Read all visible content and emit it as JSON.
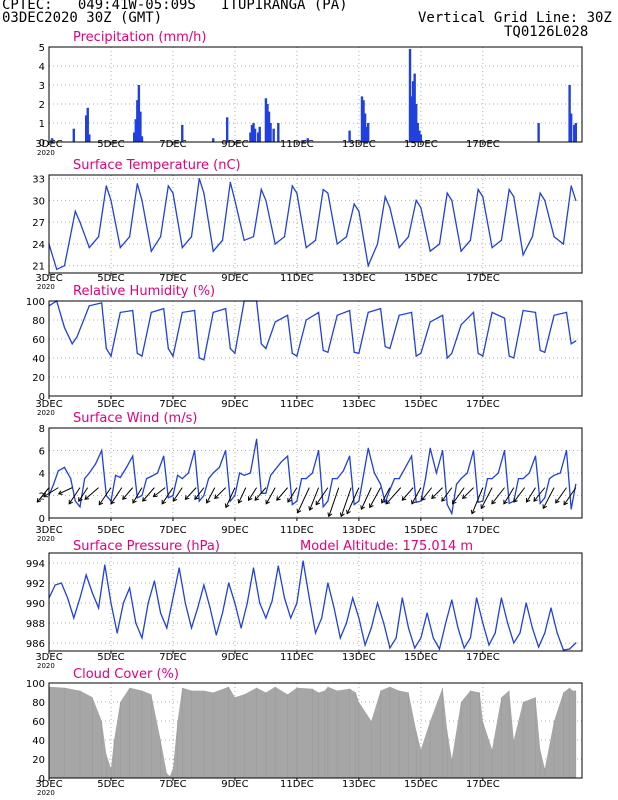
{
  "header": {
    "line1": "CPTEC:   049:41W-05:09S   ITUPIRANGA (PA)",
    "line2": "03DEC2020 30Z (GMT)",
    "vertical_grid": "Vertical Grid Line: 30Z",
    "code": "TQ0126L028",
    "model_altitude": "Model Altitude: 175.014 m"
  },
  "colors": {
    "header": "#e8801a",
    "title": "#e0007c",
    "series": "#2040e0",
    "cloud": "#a6a6a6",
    "axis": "#000000",
    "grid": "#b0b0b0"
  },
  "x_axis": {
    "tick_labels": [
      "3DEC",
      "5DEC",
      "7DEC",
      "9DEC",
      "11DEC",
      "13DEC",
      "15DEC",
      "17DEC"
    ],
    "year_label": "2020"
  },
  "chart_data": [
    {
      "type": "bar",
      "key": "precip",
      "title": "Precipitation (mm/h)",
      "ylim": [
        0,
        5
      ],
      "yticks": [
        0,
        1,
        2,
        3,
        4,
        5
      ],
      "points": [
        [
          0.1,
          0.2
        ],
        [
          0.8,
          0.7
        ],
        [
          1.2,
          1.4
        ],
        [
          1.25,
          1.8
        ],
        [
          1.3,
          0.4
        ],
        [
          2.75,
          0.5
        ],
        [
          2.8,
          1.2
        ],
        [
          2.85,
          2.2
        ],
        [
          2.9,
          3.0
        ],
        [
          2.95,
          1.6
        ],
        [
          3.0,
          0.3
        ],
        [
          4.3,
          0.9
        ],
        [
          5.3,
          0.2
        ],
        [
          5.75,
          1.3
        ],
        [
          6.5,
          0.5
        ],
        [
          6.55,
          0.9
        ],
        [
          6.6,
          1.0
        ],
        [
          6.65,
          0.7
        ],
        [
          6.75,
          0.5
        ],
        [
          6.8,
          0.8
        ],
        [
          7.0,
          2.3
        ],
        [
          7.05,
          2.0
        ],
        [
          7.1,
          1.6
        ],
        [
          7.15,
          1.0
        ],
        [
          7.25,
          0.7
        ],
        [
          7.4,
          1.0
        ],
        [
          8.2,
          0.1
        ],
        [
          8.35,
          0.2
        ],
        [
          9.7,
          0.6
        ],
        [
          10.1,
          2.4
        ],
        [
          10.15,
          2.2
        ],
        [
          10.2,
          1.5
        ],
        [
          10.25,
          0.8
        ],
        [
          10.3,
          1.0
        ],
        [
          11.65,
          4.9
        ],
        [
          11.7,
          2.4
        ],
        [
          11.75,
          3.2
        ],
        [
          11.8,
          3.6
        ],
        [
          11.85,
          2.0
        ],
        [
          11.9,
          1.0
        ],
        [
          11.95,
          0.6
        ],
        [
          12.0,
          0.4
        ],
        [
          15.8,
          1.0
        ],
        [
          16.8,
          3.0
        ],
        [
          16.85,
          1.5
        ],
        [
          16.95,
          0.9
        ],
        [
          17.0,
          1.0
        ]
      ]
    },
    {
      "type": "line",
      "key": "temp",
      "title": "Surface Temperature (nC)",
      "ylim": [
        20,
        33.5
      ],
      "yticks": [
        21,
        24,
        27,
        30,
        33
      ],
      "x": [
        0,
        0.25,
        0.5,
        0.85,
        1.0,
        1.3,
        1.6,
        1.85,
        2.0,
        2.3,
        2.6,
        2.85,
        3.0,
        3.3,
        3.6,
        3.85,
        4.0,
        4.3,
        4.6,
        4.85,
        5.0,
        5.3,
        5.6,
        5.85,
        6.0,
        6.3,
        6.6,
        6.85,
        7.0,
        7.3,
        7.6,
        7.85,
        8.0,
        8.3,
        8.6,
        8.85,
        9.0,
        9.3,
        9.6,
        9.85,
        10.0,
        10.3,
        10.6,
        10.85,
        11.0,
        11.3,
        11.6,
        11.85,
        12.0,
        12.3,
        12.6,
        12.85,
        13.0,
        13.3,
        13.6,
        13.85,
        14.0,
        14.3,
        14.6,
        14.85,
        15.0,
        15.3,
        15.6,
        15.85,
        16.0,
        16.3,
        16.6,
        16.85,
        17.0
      ],
      "values": [
        24,
        20.5,
        21,
        28.5,
        27,
        23.5,
        25,
        32,
        30,
        23.5,
        25,
        32.3,
        30,
        23,
        25,
        32,
        31,
        23.5,
        25,
        33,
        31,
        23,
        24.5,
        32.5,
        30,
        24.5,
        25,
        31.5,
        30,
        24,
        25,
        32,
        31,
        23.5,
        24.5,
        31.5,
        31,
        24,
        25,
        29.5,
        28.5,
        21,
        24,
        30.5,
        29,
        23.5,
        25,
        30,
        29,
        23,
        24,
        31,
        30,
        23,
        24.5,
        31.5,
        30.5,
        23.5,
        24.5,
        31.5,
        30.5,
        22.5,
        25,
        31,
        30,
        25,
        24,
        32,
        30
      ]
    },
    {
      "type": "line",
      "key": "rh",
      "title": "Relative Humidity (%)",
      "ylim": [
        0,
        100
      ],
      "yticks": [
        0,
        20,
        40,
        60,
        80,
        100
      ],
      "x": [
        0,
        0.25,
        0.5,
        0.75,
        0.9,
        1.3,
        1.7,
        1.85,
        2.0,
        2.3,
        2.7,
        2.85,
        3.0,
        3.3,
        3.7,
        3.85,
        4.0,
        4.3,
        4.7,
        4.85,
        5.0,
        5.3,
        5.7,
        5.85,
        6.0,
        6.3,
        6.7,
        6.85,
        7.0,
        7.3,
        7.7,
        7.85,
        8.0,
        8.3,
        8.7,
        8.85,
        9.0,
        9.3,
        9.7,
        9.85,
        10.0,
        10.3,
        10.7,
        10.85,
        11.0,
        11.3,
        11.7,
        11.85,
        12.0,
        12.3,
        12.7,
        12.85,
        13.0,
        13.3,
        13.7,
        13.85,
        14.0,
        14.3,
        14.7,
        14.85,
        15.0,
        15.3,
        15.7,
        15.85,
        16.0,
        16.3,
        16.7,
        16.85,
        17.0
      ],
      "values": [
        95,
        100,
        72,
        55,
        62,
        95,
        98,
        50,
        42,
        88,
        90,
        45,
        42,
        88,
        92,
        50,
        42,
        88,
        90,
        40,
        38,
        88,
        92,
        50,
        45,
        100,
        100,
        55,
        50,
        78,
        85,
        45,
        42,
        80,
        88,
        48,
        46,
        85,
        90,
        46,
        45,
        88,
        92,
        52,
        50,
        85,
        88,
        42,
        45,
        78,
        85,
        40,
        45,
        75,
        88,
        45,
        42,
        88,
        82,
        42,
        40,
        90,
        88,
        48,
        46,
        85,
        88,
        55,
        58
      ]
    },
    {
      "type": "line",
      "key": "wind",
      "title": "Surface Wind (m/s)",
      "ylim": [
        0,
        8
      ],
      "yticks": [
        0,
        2,
        4,
        6,
        8
      ],
      "x": [
        0,
        0.15,
        0.3,
        0.5,
        0.7,
        0.85,
        1.0,
        1.15,
        1.3,
        1.5,
        1.7,
        1.85,
        2.0,
        2.15,
        2.3,
        2.5,
        2.7,
        2.85,
        3.0,
        3.15,
        3.3,
        3.5,
        3.7,
        3.85,
        4.0,
        4.15,
        4.3,
        4.5,
        4.7,
        4.85,
        5.0,
        5.15,
        5.3,
        5.5,
        5.7,
        5.85,
        6.0,
        6.15,
        6.3,
        6.5,
        6.7,
        6.85,
        7.0,
        7.15,
        7.3,
        7.5,
        7.7,
        7.85,
        8.0,
        8.15,
        8.3,
        8.5,
        8.7,
        8.85,
        9.0,
        9.15,
        9.3,
        9.5,
        9.7,
        9.85,
        10.0,
        10.15,
        10.3,
        10.5,
        10.7,
        10.85,
        11.0,
        11.15,
        11.3,
        11.5,
        11.7,
        11.85,
        12.0,
        12.15,
        12.3,
        12.5,
        12.7,
        12.85,
        13.0,
        13.15,
        13.3,
        13.5,
        13.7,
        13.85,
        14.0,
        14.15,
        14.3,
        14.5,
        14.7,
        14.85,
        15.0,
        15.15,
        15.3,
        15.5,
        15.7,
        15.85,
        16.0,
        16.15,
        16.3,
        16.5,
        16.7,
        16.85,
        17.0
      ],
      "values": [
        2.0,
        3.0,
        4.2,
        4.5,
        3.5,
        1.5,
        1.0,
        3.5,
        4.0,
        4.8,
        6.0,
        2.0,
        1.5,
        3.8,
        3.6,
        4.5,
        5.5,
        1.8,
        2.0,
        3.5,
        3.7,
        4.0,
        5.5,
        1.8,
        2.0,
        3.8,
        3.5,
        4.0,
        6.0,
        1.5,
        2.0,
        3.5,
        4.0,
        4.5,
        6.0,
        1.5,
        2.0,
        4.0,
        3.8,
        4.0,
        7.0,
        2.2,
        2.2,
        3.8,
        4.3,
        5.0,
        5.5,
        1.2,
        1.5,
        3.5,
        3.5,
        4.0,
        6.0,
        1.0,
        1.5,
        3.5,
        3.5,
        4.2,
        5.5,
        1.2,
        1.5,
        3.8,
        6.2,
        4.0,
        3.0,
        1.4,
        2.5,
        3.5,
        3.5,
        4.5,
        5.5,
        1.4,
        1.5,
        3.5,
        6.2,
        4.0,
        6.0,
        1.2,
        0.4,
        3.0,
        3.5,
        4.0,
        6.0,
        1.4,
        1.5,
        3.5,
        3.5,
        4.0,
        6.0,
        1.3,
        1.5,
        3.5,
        3.5,
        4.0,
        5.5,
        1.3,
        1.8,
        3.5,
        3.8,
        4.0,
        6.0,
        0.8,
        3.0
      ]
    },
    {
      "type": "vectors",
      "key": "wind-vectors",
      "title": "Wind direction",
      "x": [
        0.0,
        0.3,
        0.75,
        1.0,
        1.25,
        1.6,
        2.0,
        2.35,
        2.7,
        3.0,
        3.4,
        3.75,
        4.0,
        4.3,
        4.75,
        5.0,
        5.35,
        5.7,
        6.0,
        6.35,
        6.7,
        7.0,
        7.3,
        7.7,
        8.0,
        8.4,
        8.7,
        9.0,
        9.35,
        9.75,
        10.0,
        10.4,
        10.7,
        11.0,
        11.35,
        11.75,
        12.0,
        12.35,
        12.7,
        13.0,
        13.4,
        13.7,
        14.0,
        14.3,
        14.7,
        15.0,
        15.35,
        15.7,
        16.0,
        16.3,
        16.7,
        17.0
      ],
      "u": [
        -1.3,
        -1.6,
        -1.5,
        -1.2,
        -1.0,
        -1.5,
        -1.3,
        -1.2,
        -1.1,
        -1.0,
        -1.3,
        -1.3,
        -1.2,
        -1.0,
        -1.2,
        -1.0,
        -0.9,
        -1.2,
        -1.0,
        -0.8,
        -0.9,
        -1.2,
        -1.0,
        -1.2,
        -1.0,
        -1.3,
        -1.0,
        -1.3,
        -1.1,
        -1.1,
        -1.3,
        -1.1,
        -1.2,
        -0.9,
        -1.6,
        -1.2,
        -1.0,
        -1.1,
        -1.2,
        -1.1,
        -1.3,
        -1.2,
        -1.2,
        -1.2,
        -1.4,
        -1.1,
        -1.2,
        -1.0,
        -1.2,
        -1.2,
        -1.2,
        -1.3
      ],
      "v": [
        -1.6,
        -1.0,
        -0.7,
        -1.8,
        -1.5,
        -1.3,
        -1.9,
        -1.8,
        -1.3,
        -1.7,
        -1.5,
        -1.0,
        -1.8,
        -1.5,
        -1.3,
        -1.3,
        -1.7,
        -1.2,
        -2.2,
        -1.7,
        -1.4,
        -1.4,
        -1.8,
        -1.4,
        -1.6,
        -2.8,
        -2.5,
        -1.9,
        -3.2,
        -3.2,
        -2.9,
        -2.4,
        -2.2,
        -1.7,
        -1.8,
        -1.4,
        -1.8,
        -1.4,
        -1.2,
        -1.5,
        -1.8,
        -1.2,
        -2.9,
        -2.3,
        -1.8,
        -1.8,
        -1.6,
        -1.6,
        -1.5,
        -2.3,
        -1.7,
        -1.9
      ]
    },
    {
      "type": "line",
      "key": "pres",
      "title": "Surface Pressure (hPa)",
      "ylim": [
        985.2,
        995
      ],
      "yticks": [
        986,
        988,
        990,
        992,
        994
      ],
      "x": [
        0,
        0.2,
        0.4,
        0.6,
        0.8,
        1.0,
        1.2,
        1.4,
        1.6,
        1.8,
        2.0,
        2.2,
        2.4,
        2.6,
        2.8,
        3.0,
        3.2,
        3.4,
        3.6,
        3.8,
        4.0,
        4.2,
        4.4,
        4.6,
        4.8,
        5.0,
        5.2,
        5.4,
        5.6,
        5.8,
        6.0,
        6.2,
        6.4,
        6.6,
        6.8,
        7.0,
        7.2,
        7.4,
        7.6,
        7.8,
        8.0,
        8.2,
        8.4,
        8.6,
        8.8,
        9.0,
        9.2,
        9.4,
        9.6,
        9.8,
        10.0,
        10.2,
        10.4,
        10.6,
        10.8,
        11.0,
        11.2,
        11.4,
        11.6,
        11.8,
        12.0,
        12.2,
        12.4,
        12.6,
        12.8,
        13.0,
        13.2,
        13.4,
        13.6,
        13.8,
        14.0,
        14.2,
        14.4,
        14.6,
        14.8,
        15.0,
        15.2,
        15.4,
        15.6,
        15.8,
        16.0,
        16.2,
        16.4,
        16.6,
        16.8,
        17.0
      ],
      "values": [
        990.5,
        991.8,
        992.0,
        990.5,
        988.5,
        990.5,
        992.8,
        991.0,
        989.5,
        993.8,
        990.0,
        987.0,
        990.0,
        991.5,
        988.0,
        986.5,
        990.0,
        992.2,
        989.0,
        987.5,
        990.5,
        993.5,
        990.0,
        987.5,
        989.5,
        991.8,
        989.5,
        986.8,
        989.0,
        992.0,
        990.0,
        987.5,
        990.0,
        993.5,
        990.0,
        988.5,
        990.2,
        993.7,
        990.5,
        988.5,
        990.0,
        994.2,
        990.5,
        987.0,
        988.5,
        992.0,
        989.5,
        986.5,
        988.0,
        990.5,
        988.5,
        985.8,
        987.5,
        990.0,
        988.0,
        985.5,
        986.5,
        990.5,
        987.5,
        985.5,
        986.5,
        989.0,
        986.5,
        985.4,
        988.0,
        990.3,
        987.5,
        985.5,
        986.5,
        990.5,
        988.0,
        985.8,
        987.0,
        990.5,
        988.0,
        986.0,
        987.0,
        990.0,
        987.5,
        985.6,
        987.0,
        989.5,
        987.0,
        985.3,
        985.4,
        986.0
      ]
    },
    {
      "type": "area",
      "key": "cloud",
      "title": "Cloud Cover (%)",
      "ylim": [
        0,
        100
      ],
      "yticks": [
        0,
        20,
        40,
        60,
        80,
        100
      ],
      "x": [
        0,
        0.5,
        1.0,
        1.4,
        1.7,
        1.85,
        2.0,
        2.1,
        2.3,
        2.6,
        3.0,
        3.3,
        3.6,
        3.8,
        3.9,
        4.0,
        4.15,
        4.3,
        4.6,
        5.0,
        5.3,
        5.8,
        6.0,
        6.3,
        6.7,
        7.0,
        7.3,
        7.7,
        8.0,
        8.5,
        8.7,
        8.9,
        9.0,
        9.3,
        9.7,
        9.9,
        10.0,
        10.4,
        10.7,
        11.0,
        11.3,
        11.6,
        11.85,
        12.0,
        12.3,
        12.7,
        12.85,
        13.0,
        13.3,
        13.6,
        13.9,
        14.0,
        14.3,
        14.6,
        14.85,
        15.0,
        15.3,
        15.7,
        15.85,
        16.0,
        16.3,
        16.6,
        16.8,
        16.9,
        17.0
      ],
      "values": [
        96,
        95,
        92,
        85,
        60,
        25,
        10,
        40,
        80,
        95,
        92,
        88,
        40,
        5,
        2,
        10,
        60,
        95,
        92,
        92,
        90,
        96,
        85,
        88,
        95,
        90,
        96,
        88,
        95,
        94,
        90,
        92,
        96,
        92,
        94,
        90,
        80,
        60,
        92,
        96,
        92,
        90,
        50,
        30,
        60,
        95,
        50,
        20,
        80,
        92,
        90,
        60,
        30,
        85,
        92,
        40,
        80,
        85,
        30,
        10,
        60,
        90,
        95,
        92,
        92
      ]
    }
  ]
}
